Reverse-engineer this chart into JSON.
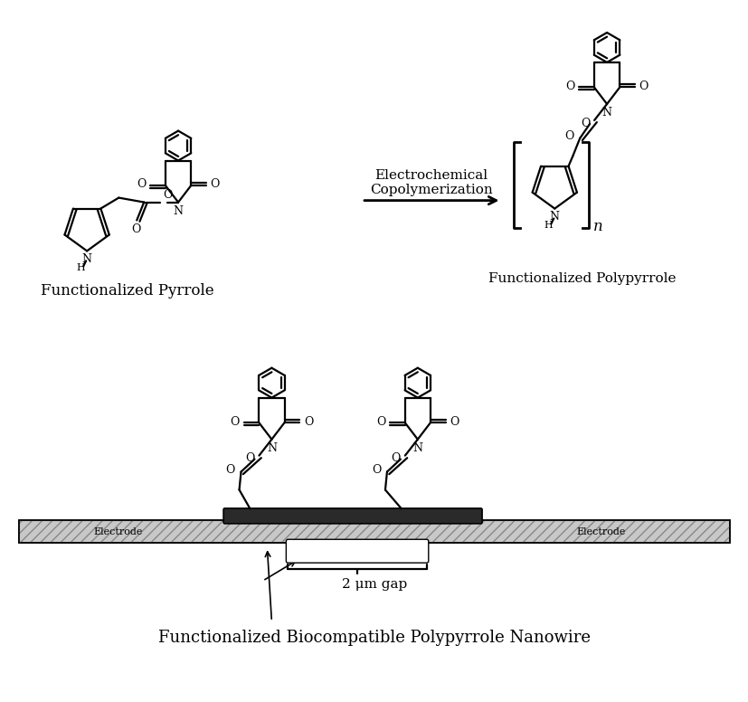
{
  "bg_color": "#ffffff",
  "line_color": "#000000",
  "label_fp": "Functionalized Pyrrole",
  "label_fpp": "Functionalized Polypyrrole",
  "label_fbpn": "Functionalized Biocompatible Polypyrrole Nanowire",
  "label_ec1": "Electrochemical",
  "label_ec2": "Copolymerization",
  "label_gap": "2 μm gap",
  "label_electrode_left": "Electrode",
  "label_electrode_right": "Electrode",
  "figsize": [
    8.28,
    7.76
  ],
  "dpi": 100
}
